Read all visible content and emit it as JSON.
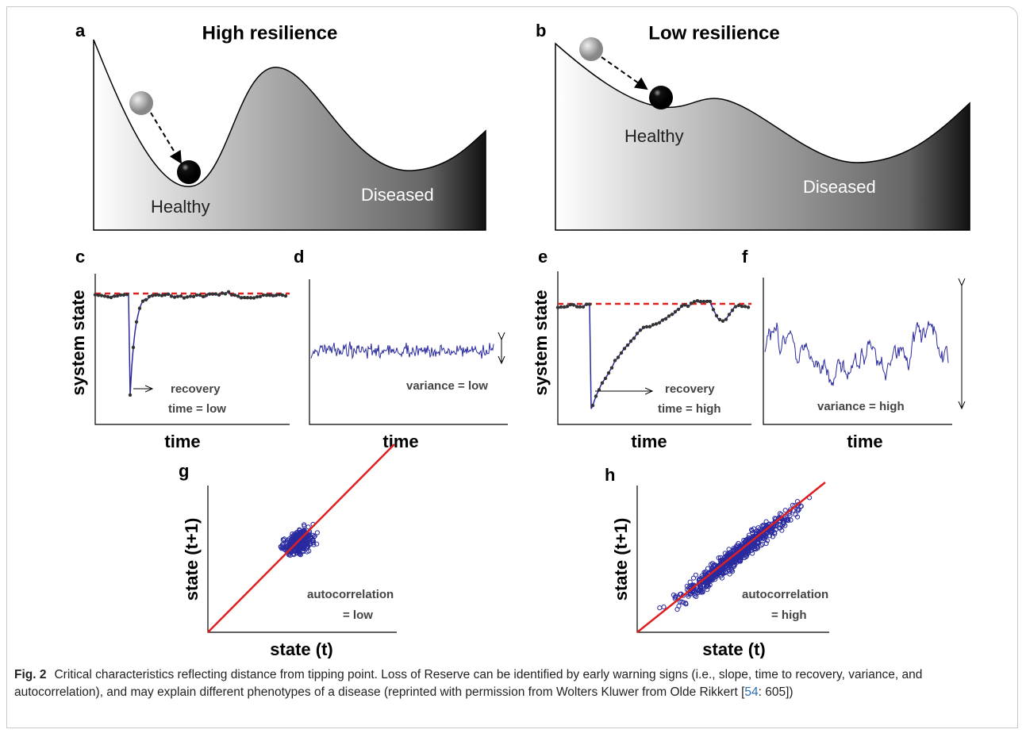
{
  "panels": {
    "a": {
      "letter": "a",
      "title": "High resilience",
      "healthy": "Healthy",
      "diseased": "Diseased"
    },
    "b": {
      "letter": "b",
      "title": "Low resilience",
      "healthy": "Healthy",
      "diseased": "Diseased"
    },
    "c": {
      "letter": "c",
      "ylabel": "system state",
      "xlabel": "time",
      "note1": "recovery",
      "note2": "time = low"
    },
    "d": {
      "letter": "d",
      "xlabel": "time",
      "note": "variance = low"
    },
    "e": {
      "letter": "e",
      "ylabel": "system state",
      "xlabel": "time",
      "note1": "recovery",
      "note2": "time = high"
    },
    "f": {
      "letter": "f",
      "xlabel": "time",
      "note": "variance = high"
    },
    "g": {
      "letter": "g",
      "ylabel": "state (t+1)",
      "xlabel": "state (t)",
      "note1": "autocorrelation",
      "note2": "= low"
    },
    "h": {
      "letter": "h",
      "ylabel": "state (t+1)",
      "xlabel": "state (t)",
      "note1": "autocorrelation",
      "note2": "= high"
    }
  },
  "caption": {
    "label": "Fig. 2",
    "text": "Critical characteristics reflecting distance from tipping point. Loss of Reserve can be identified by early warning signs (i.e., slope, time to recovery, variance, and autocorrelation), and may explain different phenotypes of a disease (reprinted with permission from Wolters Kluwer from Olde Rikkert [",
    "ref": "54",
    "tail": ": 605])"
  }
}
